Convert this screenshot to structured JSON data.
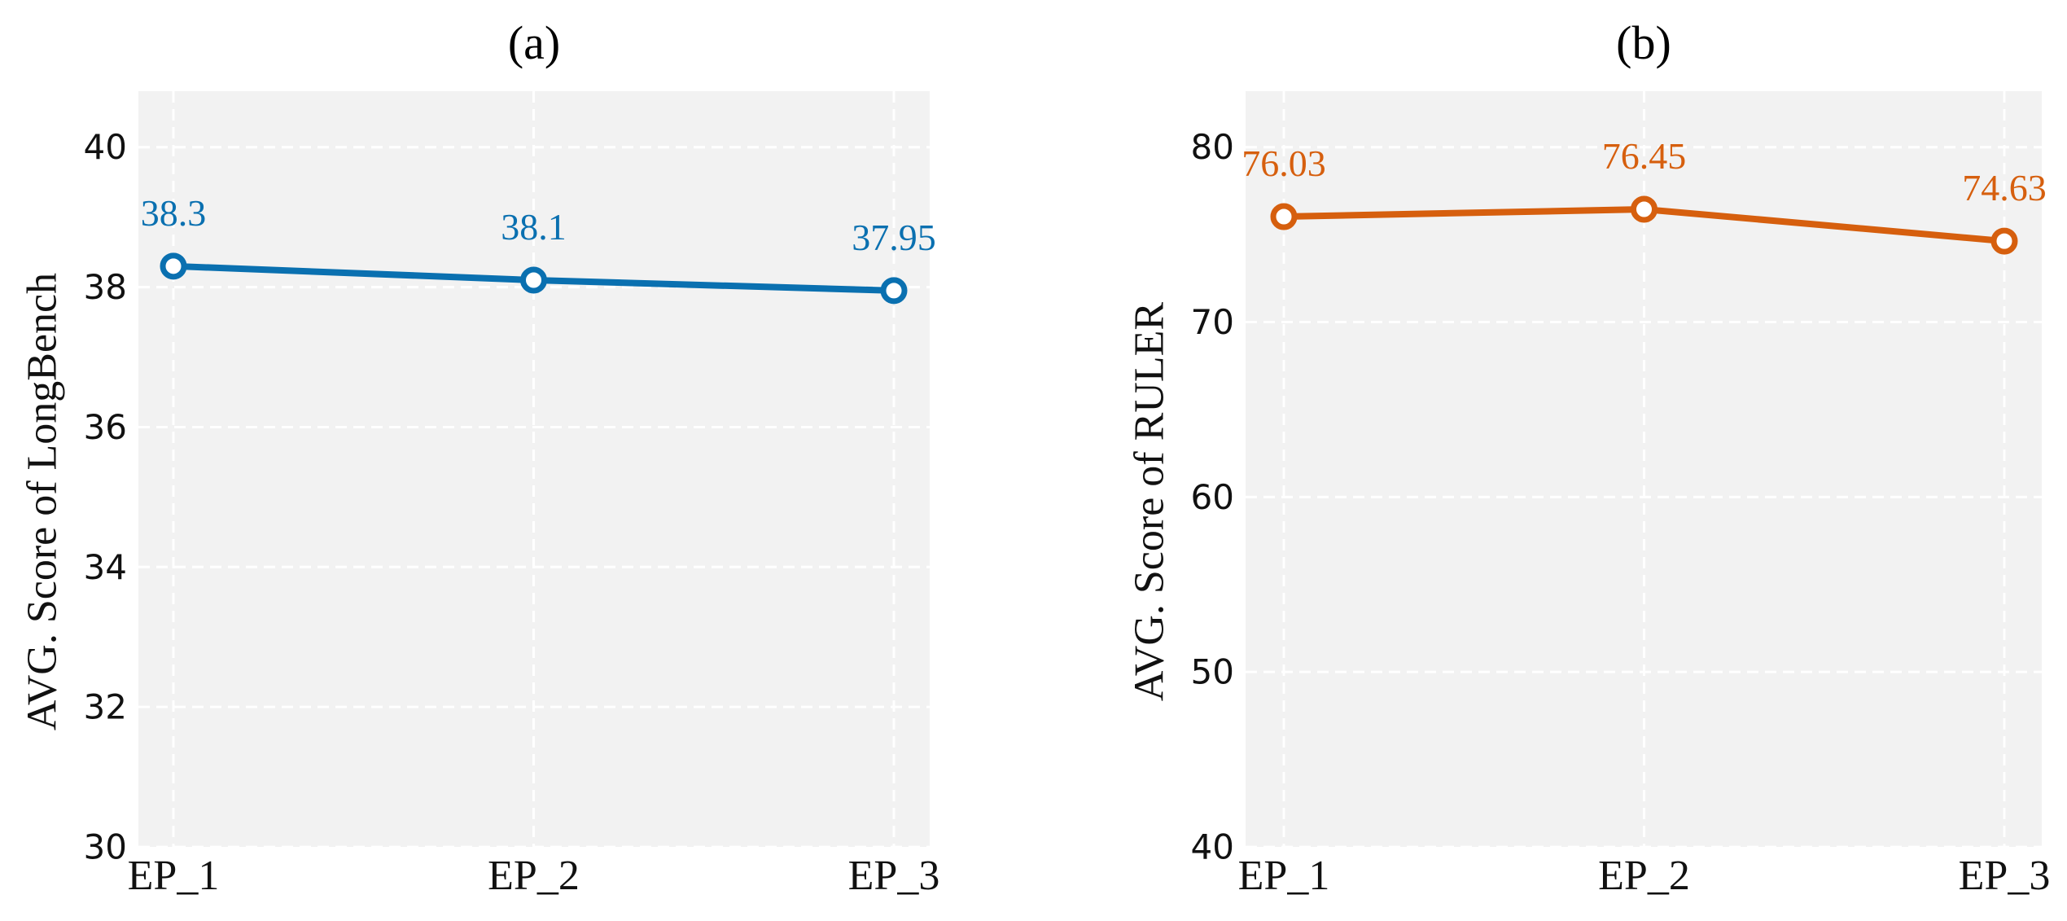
{
  "chart_data": [
    {
      "type": "line",
      "title": "(a)",
      "xlabel": "",
      "ylabel": "AVG. Score of LongBench",
      "categories": [
        "EP_1",
        "EP_2",
        "EP_3"
      ],
      "series": [
        {
          "values": [
            38.3,
            38.1,
            37.95
          ],
          "labels": [
            "38.3",
            "38.1",
            "37.95"
          ],
          "color": "#0a70b0"
        }
      ],
      "ylim": [
        30,
        40.8
      ],
      "yticks": [
        30,
        32,
        34,
        36,
        38,
        40
      ],
      "grid": true,
      "marker": "hollow-circle",
      "background": "#f2f2f2"
    },
    {
      "type": "line",
      "title": "(b)",
      "xlabel": "",
      "ylabel": "AVG. Score of RULER",
      "categories": [
        "EP_1",
        "EP_2",
        "EP_3"
      ],
      "series": [
        {
          "values": [
            76.03,
            76.45,
            74.63
          ],
          "labels": [
            "76.03",
            "76.45",
            "74.63"
          ],
          "color": "#d65f0e"
        }
      ],
      "ylim": [
        40,
        83.2
      ],
      "yticks": [
        40,
        50,
        60,
        70,
        80
      ],
      "grid": true,
      "marker": "hollow-circle",
      "background": "#f2f2f2"
    }
  ]
}
